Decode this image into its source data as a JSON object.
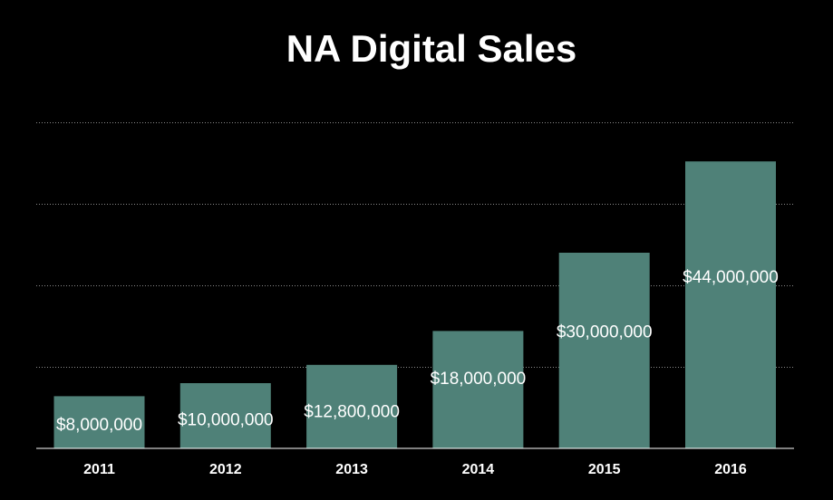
{
  "chart_data": {
    "type": "bar",
    "title": "NA Digital Sales",
    "xlabel": "",
    "ylabel": "",
    "categories": [
      "2011",
      "2012",
      "2013",
      "2014",
      "2015",
      "2016"
    ],
    "values": [
      8000000,
      10000000,
      12800000,
      18000000,
      30000000,
      44000000
    ],
    "data_labels": [
      "$8,000,000",
      "$10,000,000",
      "$12,800,000",
      "$18,000,000",
      "$30,000,000",
      "$44,000,000"
    ],
    "ylim": [
      0,
      50000000
    ],
    "gridlines": [
      12500000,
      25000000,
      37500000,
      50000000
    ],
    "grid": true,
    "gridline_style": "dotted",
    "y_tick_labels_shown": false,
    "colors": {
      "background": "#000000",
      "bar": "#4f8178",
      "text": "#ffffff",
      "grid": "#8a8a8a",
      "axis": "#ffffff"
    }
  }
}
